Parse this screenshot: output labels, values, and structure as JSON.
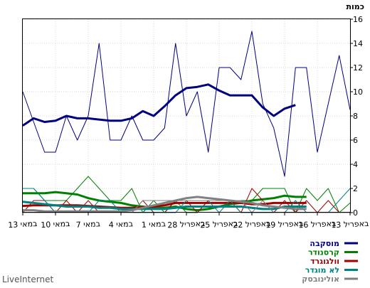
{
  "brand": "LiveInternet",
  "chart_data": {
    "type": "line",
    "ylabel": "כמות",
    "ylim": [
      0,
      16
    ],
    "yticks": [
      0,
      2,
      4,
      6,
      8,
      10,
      12,
      14,
      16
    ],
    "grid": true,
    "legend_position": "bottom-right",
    "x_dates": [
      "13 במאי",
      "12 במאי",
      "11 במאי",
      "10 במאי",
      "9 במאי",
      "8 במאי",
      "7 במאי",
      "6 במאי",
      "5 במאי",
      "4 במאי",
      "3 במאי",
      "2 במאי",
      "1 במאי",
      "30 באפריל",
      "29 באפריל",
      "28 באפריל",
      "27 באפריל",
      "26 באפריל",
      "25 באפריל",
      "24 באפריל",
      "23 באפריל",
      "22 באפריל",
      "21 באפריל",
      "20 באפריל",
      "19 באפריל",
      "18 באפריל",
      "17 באפריל",
      "16 באפריל",
      "15 באפריל",
      "14 באפריל",
      "13 באפריל"
    ],
    "x_tick_labels": [
      "13 במאי",
      "10 במאי",
      "7 במאי",
      "4 במאי",
      "1 במאי",
      "28 באפריל",
      "25 באפריל",
      "22 באפריל",
      "19 באפריל",
      "16 באפריל",
      "13 באפריל"
    ],
    "series": [
      {
        "name": "מוסקבה",
        "color": "#000080",
        "width": 1,
        "values": [
          10,
          7.5,
          5,
          5,
          8,
          6,
          8,
          14,
          6,
          6,
          8,
          6,
          6,
          7,
          14,
          8,
          10,
          5,
          12,
          12,
          11,
          15,
          9,
          7,
          3,
          12,
          12,
          5,
          9,
          13,
          8.5
        ]
      },
      {
        "name": "מוסקבה",
        "color": "#000080",
        "width": 3,
        "is_average": true,
        "values": [
          7.2,
          7.8,
          7.5,
          7.6,
          8.0,
          7.8,
          7.8,
          7.7,
          7.6,
          7.6,
          7.8,
          8.4,
          8.0,
          8.8,
          9.7,
          10.3,
          10.4,
          10.6,
          10.1,
          9.7,
          9.7,
          9.7,
          8.7,
          8.0,
          8.6,
          8.9,
          null,
          null,
          null,
          null,
          null
        ]
      },
      {
        "name": "קרסנודר",
        "color": "#008000",
        "width": 1,
        "values": [
          2,
          2,
          1,
          1,
          1,
          2,
          3,
          2,
          1,
          1,
          2,
          0,
          1,
          0,
          1,
          0,
          0,
          1,
          1,
          1,
          1,
          1,
          2,
          2,
          2,
          0,
          2,
          1,
          2,
          0,
          0.8
        ]
      },
      {
        "name": "קרסנודר",
        "color": "#008000",
        "width": 3,
        "is_average": true,
        "values": [
          1.6,
          1.6,
          1.6,
          1.7,
          1.6,
          1.5,
          1.2,
          1.0,
          0.9,
          0.8,
          0.6,
          0.5,
          0.4,
          0.4,
          0.5,
          0.3,
          0.2,
          0.3,
          0.5,
          0.7,
          0.8,
          1.0,
          1.1,
          1.2,
          1.4,
          1.3,
          1.3,
          null,
          null,
          null,
          null
        ]
      },
      {
        "name": "וולגוגרד",
        "color": "#a00000",
        "width": 1,
        "values": [
          0,
          1,
          1,
          0,
          1,
          0,
          1,
          0,
          0,
          0,
          0,
          1,
          0,
          0,
          1,
          1,
          0,
          1,
          1,
          1,
          0,
          2,
          1,
          0,
          1,
          0,
          1,
          0,
          1,
          0,
          0
        ]
      },
      {
        "name": "וולגוגרד",
        "color": "#a00000",
        "width": 3,
        "is_average": true,
        "values": [
          0.55,
          0.6,
          0.6,
          0.6,
          0.6,
          0.6,
          0.55,
          0.5,
          0.45,
          0.4,
          0.4,
          0.45,
          0.5,
          0.6,
          0.8,
          0.8,
          0.8,
          0.8,
          0.8,
          0.8,
          0.8,
          0.7,
          0.7,
          0.8,
          0.8,
          0.8,
          0.8,
          null,
          null,
          null,
          null
        ]
      },
      {
        "name": "לא מוגדר",
        "color": "#008080",
        "width": 1,
        "values": [
          2,
          2,
          1,
          0,
          0,
          0,
          0,
          1,
          1,
          0,
          0,
          0,
          0,
          0,
          0,
          1,
          1,
          1,
          0,
          1,
          0,
          0,
          0,
          0,
          0,
          1,
          0,
          0,
          0,
          1,
          2
        ]
      },
      {
        "name": "לא מוגדר",
        "color": "#008080",
        "width": 3,
        "is_average": true,
        "values": [
          0.9,
          0.8,
          0.7,
          0.6,
          0.5,
          0.5,
          0.5,
          0.4,
          0.4,
          0.3,
          0.3,
          0.3,
          0.3,
          0.3,
          0.4,
          0.5,
          0.5,
          0.5,
          0.5,
          0.5,
          0.5,
          0.4,
          0.3,
          0.3,
          0.5,
          0.5,
          0.5,
          null,
          null,
          null,
          null
        ]
      },
      {
        "name": "אולינובסק",
        "color": "#808080",
        "width": 1,
        "values": [
          0,
          0,
          0,
          0,
          0,
          0,
          0,
          0,
          0,
          0,
          0,
          1,
          1,
          1,
          1,
          1,
          1,
          1,
          1,
          1,
          1,
          0,
          1,
          0,
          0,
          0,
          0,
          0,
          0,
          0,
          0
        ]
      },
      {
        "name": "אולינובסק",
        "color": "#808080",
        "width": 3,
        "is_average": true,
        "values": [
          0.2,
          0.2,
          0.1,
          0.1,
          0.1,
          0.1,
          0.1,
          0.1,
          0.1,
          0.1,
          0.2,
          0.4,
          0.6,
          0.8,
          1.0,
          1.2,
          1.3,
          1.2,
          1.1,
          1.0,
          0.9,
          0.8,
          0.6,
          0.5,
          0.4,
          0.3,
          0.3,
          null,
          null,
          null,
          null
        ]
      }
    ],
    "legend": [
      {
        "label": "מוסקבה",
        "color": "#000080"
      },
      {
        "label": "קרסנודר",
        "color": "#008000"
      },
      {
        "label": "וולגוגרד",
        "color": "#a00000"
      },
      {
        "label": "לא מוגדר",
        "color": "#008080"
      },
      {
        "label": "אולינובסק",
        "color": "#808080"
      }
    ]
  }
}
